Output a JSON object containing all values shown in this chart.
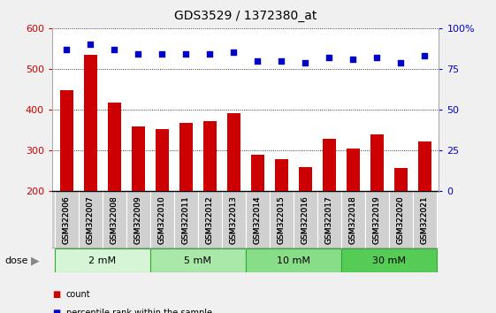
{
  "title": "GDS3529 / 1372380_at",
  "categories": [
    "GSM322006",
    "GSM322007",
    "GSM322008",
    "GSM322009",
    "GSM322010",
    "GSM322011",
    "GSM322012",
    "GSM322013",
    "GSM322014",
    "GSM322015",
    "GSM322016",
    "GSM322017",
    "GSM322018",
    "GSM322019",
    "GSM322020",
    "GSM322021"
  ],
  "counts": [
    447,
    535,
    418,
    358,
    352,
    368,
    371,
    392,
    290,
    278,
    259,
    328,
    304,
    338,
    257,
    321
  ],
  "percentiles": [
    87,
    90,
    87,
    84,
    84,
    84,
    84,
    85,
    80,
    80,
    79,
    82,
    81,
    82,
    79,
    83
  ],
  "bar_color": "#cc0000",
  "dot_color": "#0000cc",
  "ylim_left": [
    200,
    600
  ],
  "ylim_right": [
    0,
    100
  ],
  "yticks_left": [
    200,
    300,
    400,
    500,
    600
  ],
  "yticks_right": [
    0,
    25,
    50,
    75,
    100
  ],
  "dose_groups": [
    {
      "label": "2 mM",
      "start": 0,
      "end": 3,
      "color": "#d6f5d6"
    },
    {
      "label": "5 mM",
      "start": 4,
      "end": 7,
      "color": "#aae8aa"
    },
    {
      "label": "10 mM",
      "start": 8,
      "end": 11,
      "color": "#88dd88"
    },
    {
      "label": "30 mM",
      "start": 12,
      "end": 15,
      "color": "#55cc55"
    }
  ],
  "fig_bg": "#f0f0f0",
  "plot_bg": "#ffffff",
  "xtick_bg": "#d0d0d0",
  "legend_count": "count",
  "legend_pct": "percentile rank within the sample"
}
